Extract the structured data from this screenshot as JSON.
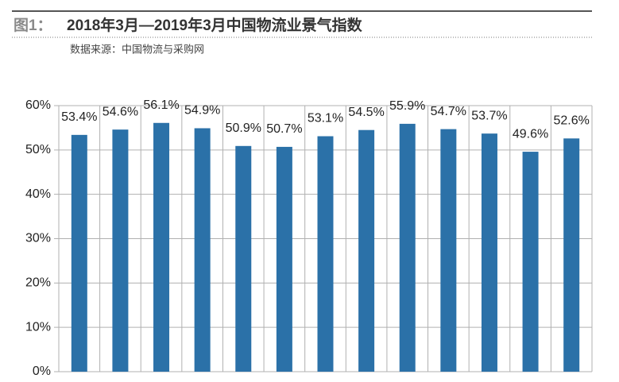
{
  "header": {
    "figure_label": "图1：",
    "source": "数据来源：中国物流与采购网"
  },
  "chart_data": {
    "type": "bar",
    "title": "2018年3月—2019年3月中国物流业景气指数",
    "categories": [
      null,
      null,
      null,
      null,
      null,
      null,
      null,
      null,
      null,
      null,
      null,
      null,
      null
    ],
    "values": [
      53.4,
      54.6,
      56.1,
      54.9,
      50.9,
      50.7,
      53.1,
      54.5,
      55.9,
      54.7,
      53.7,
      49.6,
      52.6
    ],
    "value_labels": [
      "53.4%",
      "54.6%",
      "56.1%",
      "54.9%",
      "50.9%",
      "50.7%",
      "53.1%",
      "54.5%",
      "55.9%",
      "54.7%",
      "53.7%",
      "49.6%",
      "52.6%"
    ],
    "color": "#2b71a8",
    "ylim": [
      0,
      60
    ],
    "yticks": [
      {
        "value": 0,
        "label": "0%"
      },
      {
        "value": 10,
        "label": "10%"
      },
      {
        "value": 20,
        "label": "20%"
      },
      {
        "value": 30,
        "label": "30%"
      },
      {
        "value": 40,
        "label": "40%"
      },
      {
        "value": 50,
        "label": "50%"
      },
      {
        "value": 60,
        "label": "60%"
      }
    ],
    "grid": true
  }
}
